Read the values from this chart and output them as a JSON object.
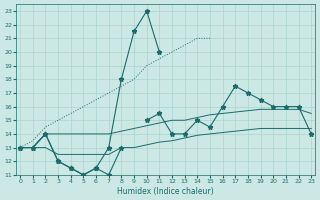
{
  "xlabel": "Humidex (Indice chaleur)",
  "x": [
    0,
    1,
    2,
    3,
    4,
    5,
    6,
    7,
    8,
    9,
    10,
    11,
    12,
    13,
    14,
    15,
    16,
    17,
    18,
    19,
    20,
    21,
    22,
    23
  ],
  "line_jagged": [
    13,
    13,
    14,
    12,
    11.5,
    11,
    11.5,
    11,
    13,
    null,
    15,
    15.5,
    14,
    14,
    15,
    14.5,
    16,
    17.5,
    17,
    16.5,
    16,
    16,
    16,
    14
  ],
  "line_peak": [
    13,
    13,
    14,
    12,
    11.5,
    11,
    11.5,
    13,
    18,
    21.5,
    23,
    20,
    null,
    null,
    null,
    null,
    null,
    null,
    null,
    null,
    null,
    null,
    null,
    null
  ],
  "line_dotted": [
    13,
    13.5,
    14.5,
    15,
    15.5,
    16,
    16.5,
    17,
    17.5,
    18,
    19,
    19.5,
    20,
    20.5,
    21,
    21,
    null,
    null,
    null,
    null,
    null,
    null,
    null,
    null
  ],
  "line_lower": [
    13,
    13,
    13,
    12.5,
    12.5,
    12.5,
    12.5,
    12.5,
    13,
    13,
    13.2,
    13.4,
    13.5,
    13.7,
    13.9,
    14.0,
    14.1,
    14.2,
    14.3,
    14.4,
    14.4,
    14.4,
    14.4,
    14.4
  ],
  "line_upper": [
    13,
    13,
    14,
    14,
    14,
    14,
    14,
    14,
    14.2,
    14.4,
    14.6,
    14.8,
    15,
    15,
    15.2,
    15.4,
    15.5,
    15.6,
    15.7,
    15.8,
    15.8,
    15.8,
    15.8,
    15.5
  ],
  "xlim": [
    -0.3,
    23.3
  ],
  "ylim": [
    11,
    23.5
  ],
  "yticks": [
    11,
    12,
    13,
    14,
    15,
    16,
    17,
    18,
    19,
    20,
    21,
    22,
    23
  ],
  "xticks": [
    0,
    1,
    2,
    3,
    4,
    5,
    6,
    7,
    8,
    9,
    10,
    11,
    12,
    13,
    14,
    15,
    16,
    17,
    18,
    19,
    20,
    21,
    22,
    23
  ],
  "bg_color": "#cce8e4",
  "line_color": "#1a6b6b",
  "grid_color": "#aad4ce"
}
